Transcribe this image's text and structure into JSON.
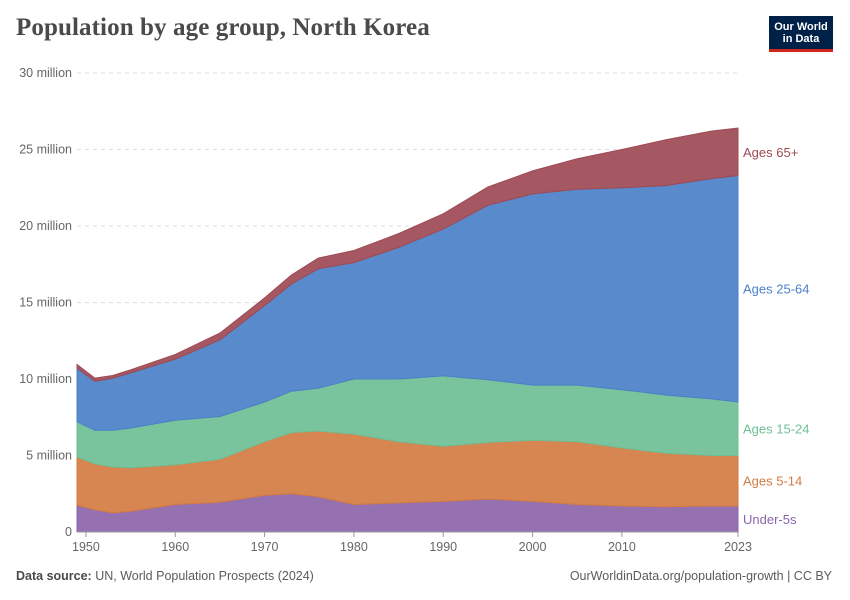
{
  "header": {
    "title": "Population by age group, North Korea",
    "logo_line1": "Our World",
    "logo_line2": "in Data"
  },
  "footer": {
    "source_label": "Data source:",
    "source_text": "UN, World Population Prospects (2024)",
    "link": "OurWorldinData.org/population-growth | CC BY"
  },
  "chart_data": {
    "type": "area",
    "stacked": true,
    "title": "Population by age group, North Korea",
    "xlabel": "",
    "ylabel": "",
    "xlim": [
      1949,
      2023
    ],
    "ylim": [
      0,
      30000000
    ],
    "yticks": [
      0,
      5000000,
      10000000,
      15000000,
      20000000,
      25000000,
      30000000
    ],
    "ytick_labels": [
      "0",
      "5 million",
      "10 million",
      "15 million",
      "20 million",
      "25 million",
      "30 million"
    ],
    "xticks": [
      1950,
      1960,
      1970,
      1980,
      1990,
      2000,
      2010,
      2023
    ],
    "xtick_labels": [
      "1950",
      "1960",
      "1970",
      "1980",
      "1990",
      "2000",
      "2010",
      "2023"
    ],
    "grid": true,
    "x": [
      1949,
      1951,
      1953,
      1955,
      1960,
      1965,
      1970,
      1973,
      1976,
      1980,
      1985,
      1990,
      1995,
      2000,
      2005,
      2010,
      2015,
      2020,
      2023
    ],
    "series": [
      {
        "name": "Under-5s",
        "color": "#8c65aa",
        "values": [
          1750000,
          1450000,
          1250000,
          1350000,
          1800000,
          1950000,
          2400000,
          2500000,
          2300000,
          1800000,
          1900000,
          2000000,
          2150000,
          2000000,
          1800000,
          1700000,
          1650000,
          1700000,
          1700000
        ]
      },
      {
        "name": "Ages 5-14",
        "color": "#d47b42",
        "values": [
          3150000,
          3000000,
          3000000,
          2850000,
          2600000,
          2800000,
          3500000,
          4000000,
          4300000,
          4600000,
          4000000,
          3600000,
          3700000,
          4000000,
          4100000,
          3800000,
          3500000,
          3300000,
          3300000
        ]
      },
      {
        "name": "Ages 15-24",
        "color": "#6fbf95",
        "values": [
          2300000,
          2200000,
          2400000,
          2600000,
          2900000,
          2800000,
          2600000,
          2700000,
          2800000,
          3600000,
          4100000,
          4600000,
          4100000,
          3600000,
          3700000,
          3800000,
          3800000,
          3700000,
          3500000
        ]
      },
      {
        "name": "Ages 25-64",
        "color": "#4b80c8",
        "values": [
          3500000,
          3200000,
          3400000,
          3600000,
          4000000,
          5000000,
          6300000,
          7000000,
          7800000,
          7600000,
          8600000,
          9600000,
          11400000,
          12500000,
          12800000,
          13200000,
          13700000,
          14400000,
          14800000
        ]
      },
      {
        "name": "Ages 65+",
        "color": "#9e4a55",
        "values": [
          250000,
          210000,
          180000,
          200000,
          300000,
          450000,
          500000,
          600000,
          700000,
          800000,
          900000,
          1000000,
          1200000,
          1500000,
          2000000,
          2500000,
          3000000,
          3100000,
          3100000
        ]
      }
    ]
  }
}
